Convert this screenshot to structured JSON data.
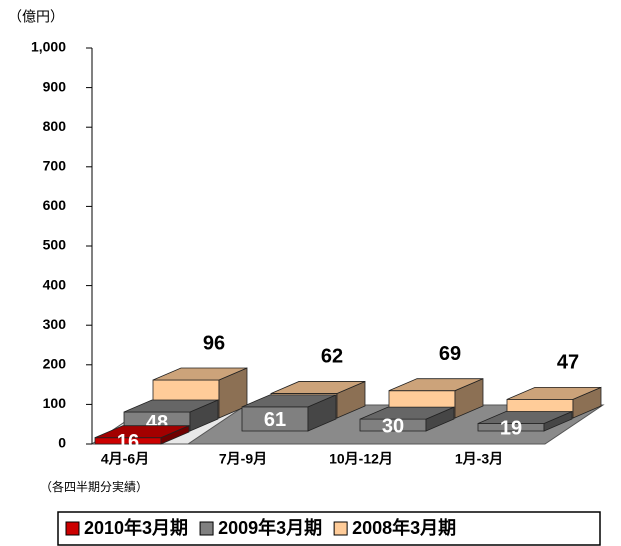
{
  "chart_data": {
    "type": "bar3d",
    "y_label": "（億円）",
    "note": "（各四半期分実績）",
    "categories": [
      "4月-6月",
      "7月-9月",
      "10月-12月",
      "1月-3月"
    ],
    "series": [
      {
        "name": "2010年3月期",
        "color": "#cc0000",
        "values": [
          16,
          null,
          null,
          null
        ]
      },
      {
        "name": "2009年3月期",
        "color": "#808080",
        "values": [
          48,
          61,
          30,
          19
        ]
      },
      {
        "name": "2008年3月期",
        "color": "#ffcc99",
        "values": [
          96,
          62,
          69,
          47
        ]
      }
    ],
    "ylim": [
      0,
      1000
    ],
    "yticks": [
      0,
      100,
      200,
      300,
      400,
      500,
      600,
      700,
      800,
      900,
      {
        "value": 1000,
        "label": "1,000"
      }
    ],
    "legend": "bottom"
  }
}
